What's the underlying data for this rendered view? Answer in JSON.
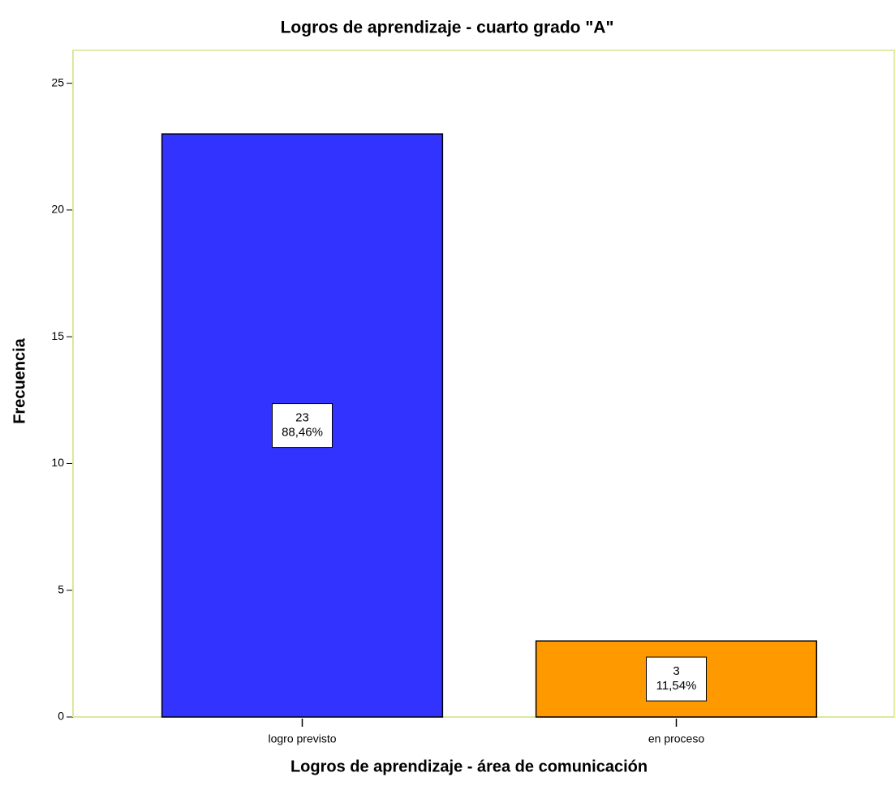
{
  "chart_data": {
    "type": "bar",
    "title": "Logros de aprendizaje - cuarto grado \"A\"",
    "x_label": "Logros de aprendizaje -  área de comunicación",
    "y_label": "Frecuencia",
    "categories": [
      "logro previsto",
      "en proceso"
    ],
    "values": [
      23,
      3
    ],
    "percentages": [
      88.46,
      11.54
    ],
    "percentage_labels": [
      "88,46%",
      "11,54%"
    ],
    "colors": [
      "#3333ff",
      "#ff9900"
    ],
    "ylim": [
      0,
      26.3
    ],
    "yticks": [
      0,
      5,
      10,
      15,
      20,
      25
    ],
    "grid": false
  }
}
